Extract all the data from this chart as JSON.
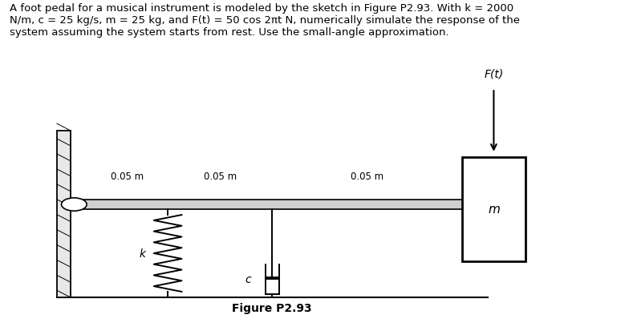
{
  "title_text": "A foot pedal for a musical instrument is modeled by the sketch in Figure P2.93. With k = 2000\nN/m, c = 25 kg/s, m = 25 kg, and F(t) = 50 cos 2πt N, numerically simulate the response of the\nsystem assuming the system starts from rest. Use the small-angle approximation.",
  "figure_label": "Figure P2.93",
  "label_005m_1": "0.05 m",
  "label_005m_2": "0.05 m",
  "label_005m_3": "0.05 m",
  "label_k": "k",
  "label_c": "c",
  "label_m": "m",
  "label_Ft": "F(t)",
  "bg_color": "#ffffff",
  "line_color": "#000000",
  "text_color": "#000000",
  "title_fontsize": 9.5,
  "label_fontsize": 8.5,
  "caption_fontsize": 10
}
